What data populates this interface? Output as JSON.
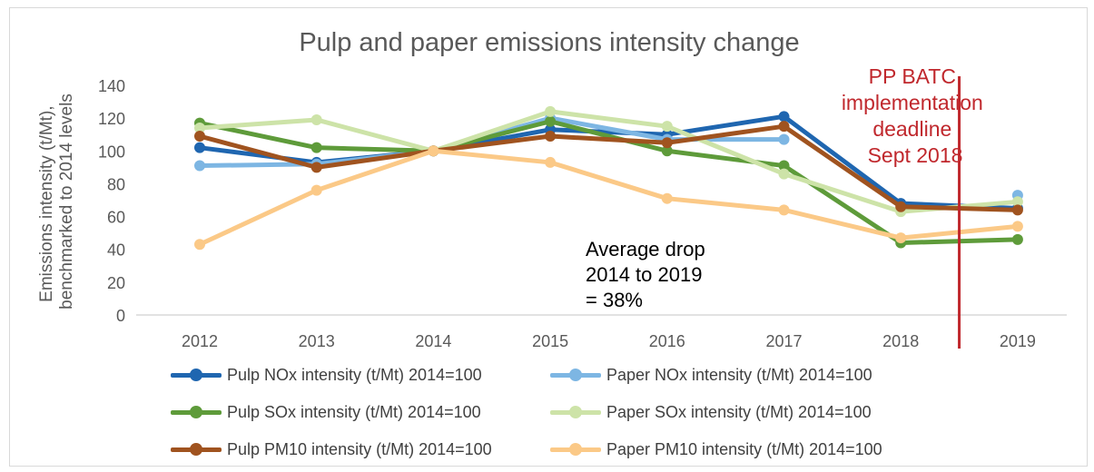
{
  "chart_data": {
    "type": "line",
    "title": "Pulp and paper emissions intensity change",
    "ylabel": [
      "Emissions intensity (t/Mt),",
      "benchmarked to 2014 levels"
    ],
    "xlabel": "",
    "categories": [
      "2012",
      "2013",
      "2014",
      "2015",
      "2016",
      "2017",
      "2018",
      "2019"
    ],
    "ylim": [
      0,
      140
    ],
    "yticks": [
      0,
      20,
      40,
      60,
      80,
      100,
      120,
      140
    ],
    "grid": false,
    "legend_position": "bottom",
    "series": [
      {
        "name": "Pulp NOx intensity (t/Mt) 2014=100",
        "color": "#1f66b0",
        "values": [
          102,
          93,
          100,
          113,
          110,
          121,
          68,
          65
        ]
      },
      {
        "name": "Paper NOx intensity (t/Mt) 2014=100",
        "color": "#7db6e3",
        "values": [
          91,
          92,
          100,
          120,
          107,
          107,
          null,
          73
        ]
      },
      {
        "name": "Pulp SOx intensity (t/Mt) 2014=100",
        "color": "#5e9b3a",
        "values": [
          117,
          102,
          100,
          118,
          100,
          91,
          44,
          46
        ]
      },
      {
        "name": "Paper SOx intensity (t/Mt) 2014=100",
        "color": "#cde3a8",
        "values": [
          114,
          119,
          100,
          124,
          115,
          86,
          63,
          69
        ]
      },
      {
        "name": "Pulp PM10 intensity (t/Mt) 2014=100",
        "color": "#a0531f",
        "values": [
          109,
          90,
          100,
          109,
          105,
          115,
          66,
          64
        ]
      },
      {
        "name": "Paper PM10 intensity (t/Mt) 2014=100",
        "color": "#fbc987",
        "values": [
          43,
          76,
          100,
          93,
          71,
          64,
          47,
          54
        ]
      }
    ],
    "annotations": [
      {
        "text": [
          "Average drop",
          "2014 to 2019",
          "= 38%"
        ],
        "color": "#000000"
      },
      {
        "text": [
          "PP BATC",
          "implementation",
          "deadline",
          "Sept 2018"
        ],
        "color": "#c0282d"
      }
    ],
    "vertical_marker": {
      "between": [
        "2018",
        "2019"
      ],
      "color": "#c0282d"
    }
  }
}
